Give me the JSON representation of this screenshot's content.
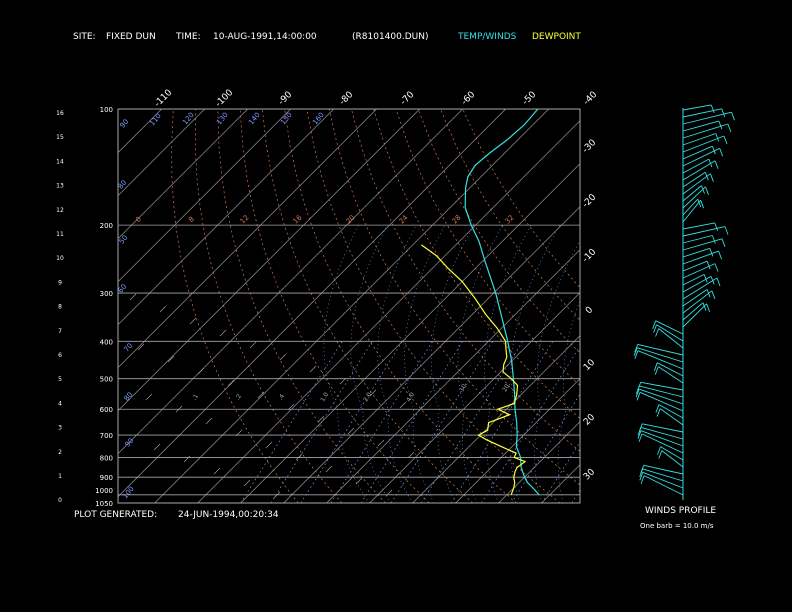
{
  "header": {
    "site_label": "SITE:",
    "site_value": "FIXED DUN",
    "time_label": "TIME:",
    "time_value": "10-AUG-1991,14:00:00",
    "file_name": "(R8101400.DUN)",
    "legend_temp": "TEMP/WINDS",
    "legend_dew": "DEWPOINT"
  },
  "footer": {
    "generated_label": "PLOT GENERATED:",
    "generated_value": "24-JUN-1994,00:20:34"
  },
  "winds_panel": {
    "title": "WINDS PROFILE",
    "note": "One barb = 10.0 m/s"
  },
  "colors": {
    "temp": "#33e0e0",
    "dew": "#ffff33",
    "grid": "#a8a8a8",
    "mixing": "#7a9cff",
    "adiabat": "#d07a55",
    "text": "#ffffff"
  },
  "chart_data": {
    "type": "line",
    "title": "",
    "xlabel": "",
    "ylabel": "",
    "log_pressure_axis": true,
    "pressure_levels": [
      100,
      200,
      300,
      400,
      500,
      600,
      700,
      800,
      900,
      1000,
      1050
    ],
    "height_ticks_km": [
      16,
      15,
      14,
      13,
      12,
      11,
      10,
      9,
      8,
      7,
      6,
      5,
      4,
      3,
      2,
      1,
      0
    ],
    "top_temp_labels": [
      -110,
      -100,
      -90,
      -80,
      -70,
      -60,
      -50,
      -40
    ],
    "right_temp_labels": [
      -30,
      -20,
      -10,
      0,
      10,
      20,
      30
    ],
    "mixing_ratio_labels": [
      ".1",
      ".2",
      ".4",
      "1.0",
      "2.0",
      "4.0",
      "10.",
      "20."
    ],
    "upper_labels_blue": [
      "90",
      "80",
      "50",
      "60",
      "70",
      "80",
      "90",
      "100",
      "110",
      "120",
      "130",
      "140",
      "150",
      "160"
    ],
    "upper_labels_orange": [
      "0",
      "8",
      "12",
      "16",
      "20",
      "24",
      "28",
      "32"
    ],
    "series": [
      {
        "name": "TEMP/WINDS",
        "points": [
          [
            1000,
            27.5
          ],
          [
            960,
            24.5
          ],
          [
            930,
            22.0
          ],
          [
            900,
            20.0
          ],
          [
            850,
            17.0
          ],
          [
            800,
            14.5
          ],
          [
            750,
            11.0
          ],
          [
            700,
            8.5
          ],
          [
            650,
            5.5
          ],
          [
            600,
            2.0
          ],
          [
            550,
            -1.5
          ],
          [
            500,
            -5.5
          ],
          [
            450,
            -10.0
          ],
          [
            400,
            -15.5
          ],
          [
            350,
            -22.0
          ],
          [
            300,
            -29.5
          ],
          [
            250,
            -39.0
          ],
          [
            220,
            -45.5
          ],
          [
            200,
            -51.0
          ],
          [
            180,
            -56.5
          ],
          [
            160,
            -61.0
          ],
          [
            150,
            -63.0
          ],
          [
            140,
            -64.0
          ],
          [
            130,
            -63.5
          ],
          [
            120,
            -62.5
          ],
          [
            110,
            -62.0
          ],
          [
            100,
            -62.5
          ]
        ]
      },
      {
        "name": "DEWPOINT",
        "points": [
          [
            1000,
            21.0
          ],
          [
            960,
            20.0
          ],
          [
            930,
            19.0
          ],
          [
            900,
            17.5
          ],
          [
            870,
            16.5
          ],
          [
            850,
            16.0
          ],
          [
            820,
            16.5
          ],
          [
            800,
            13.0
          ],
          [
            780,
            12.5
          ],
          [
            750,
            7.5
          ],
          [
            720,
            2.5
          ],
          [
            700,
            -0.5
          ],
          [
            680,
            0.5
          ],
          [
            650,
            -1.0
          ],
          [
            620,
            2.0
          ],
          [
            600,
            -2.0
          ],
          [
            580,
            0.5
          ],
          [
            550,
            -1.0
          ],
          [
            520,
            -3.0
          ],
          [
            500,
            -6.0
          ],
          [
            480,
            -9.5
          ],
          [
            460,
            -11.0
          ],
          [
            440,
            -12.0
          ],
          [
            420,
            -14.0
          ],
          [
            400,
            -16.0
          ],
          [
            370,
            -21.0
          ],
          [
            340,
            -27.0
          ],
          [
            310,
            -33.0
          ],
          [
            280,
            -40.0
          ],
          [
            260,
            -46.0
          ],
          [
            240,
            -52.0
          ],
          [
            225,
            -58.0
          ]
        ]
      }
    ],
    "wind_note": "One barb = 10.0 m/s"
  }
}
